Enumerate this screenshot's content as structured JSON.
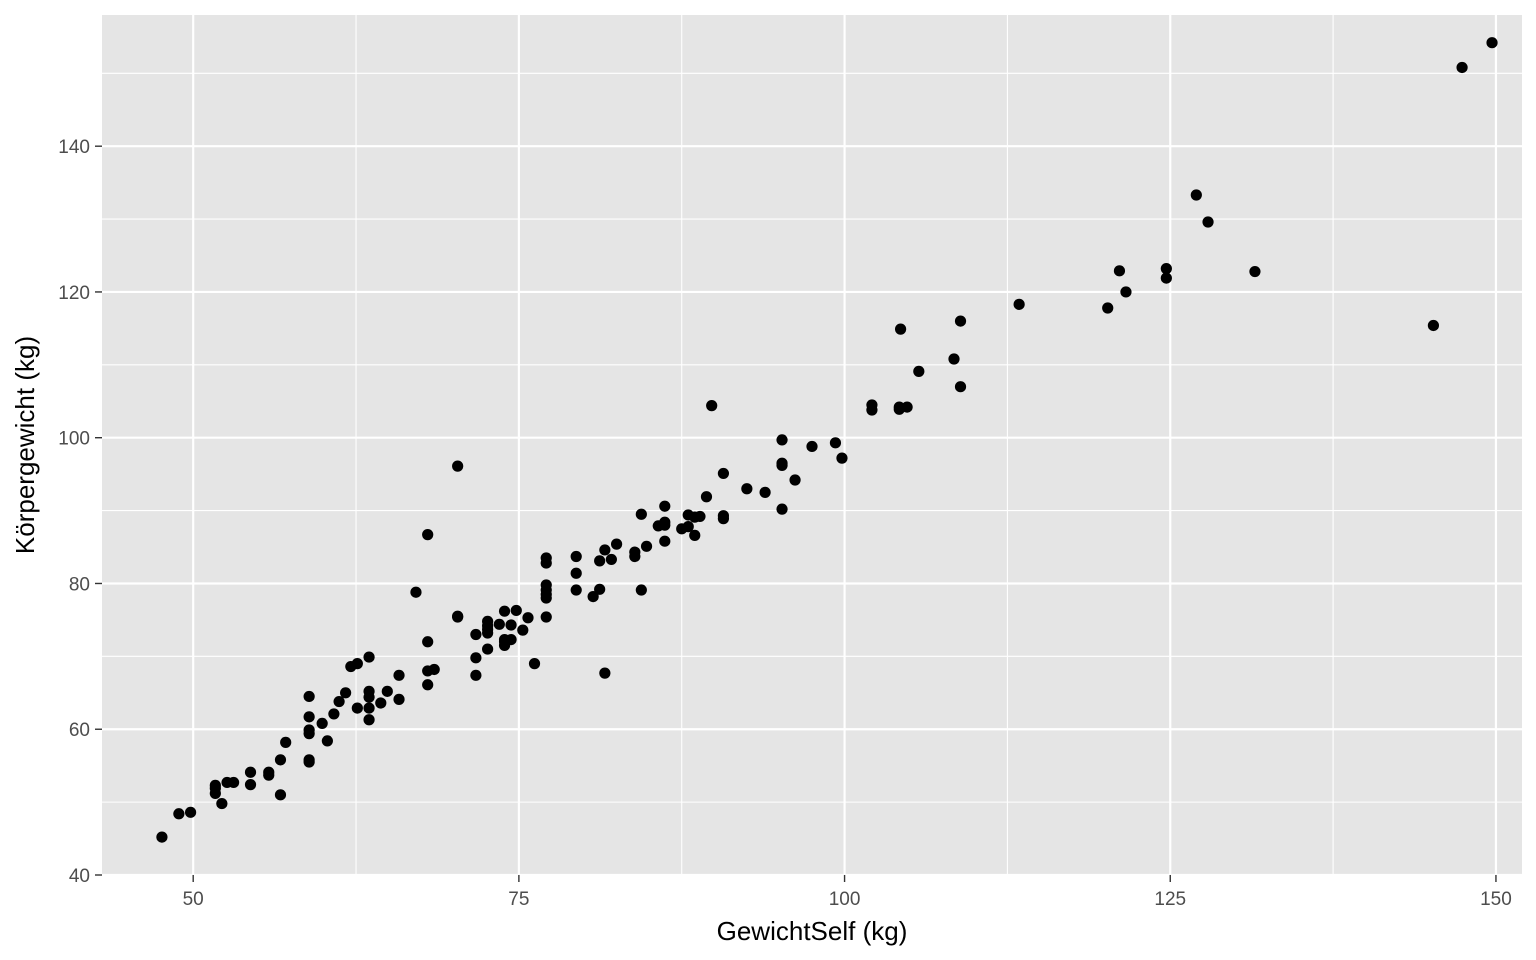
{
  "chart_data": {
    "type": "scatter",
    "title": "",
    "xlabel": "GewichtSelf (kg)",
    "ylabel": "Körpergewicht (kg)",
    "xlim": [
      43,
      152
    ],
    "ylim": [
      40,
      158
    ],
    "x_ticks": [
      50,
      75,
      100,
      125,
      150
    ],
    "y_ticks": [
      40,
      60,
      80,
      100,
      120,
      140
    ],
    "grid": true,
    "legend": "none",
    "colors": {
      "panel": "#e5e5e5",
      "grid": "#ffffff",
      "points": "#000000",
      "tick_text": "#4d4d4d"
    },
    "points": [
      [
        47.6,
        45.2
      ],
      [
        48.9,
        48.4
      ],
      [
        49.8,
        48.6
      ],
      [
        51.7,
        51.2
      ],
      [
        51.7,
        51.9
      ],
      [
        51.7,
        52.3
      ],
      [
        52.2,
        49.8
      ],
      [
        52.6,
        52.7
      ],
      [
        53.1,
        52.7
      ],
      [
        54.4,
        52.4
      ],
      [
        54.4,
        54.1
      ],
      [
        55.8,
        53.7
      ],
      [
        55.8,
        54.1
      ],
      [
        56.7,
        51.0
      ],
      [
        56.7,
        55.8
      ],
      [
        57.1,
        58.2
      ],
      [
        58.9,
        55.8
      ],
      [
        58.9,
        55.5
      ],
      [
        58.9,
        59.4
      ],
      [
        58.9,
        59.9
      ],
      [
        58.9,
        61.7
      ],
      [
        58.9,
        64.5
      ],
      [
        59.9,
        60.8
      ],
      [
        60.3,
        58.4
      ],
      [
        60.8,
        62.1
      ],
      [
        61.2,
        63.8
      ],
      [
        61.7,
        65.0
      ],
      [
        62.1,
        68.6
      ],
      [
        62.6,
        69.0
      ],
      [
        62.6,
        62.9
      ],
      [
        63.5,
        61.3
      ],
      [
        63.5,
        62.9
      ],
      [
        63.5,
        64.4
      ],
      [
        63.5,
        65.2
      ],
      [
        63.5,
        69.9
      ],
      [
        64.4,
        63.6
      ],
      [
        64.9,
        65.2
      ],
      [
        65.8,
        64.1
      ],
      [
        65.8,
        67.4
      ],
      [
        67.1,
        78.8
      ],
      [
        68.0,
        66.1
      ],
      [
        68.0,
        68.0
      ],
      [
        68.0,
        72.0
      ],
      [
        68.0,
        86.7
      ],
      [
        68.5,
        68.2
      ],
      [
        70.3,
        75.5
      ],
      [
        70.3,
        75.4
      ],
      [
        70.3,
        96.1
      ],
      [
        71.7,
        73.0
      ],
      [
        71.7,
        69.8
      ],
      [
        71.7,
        67.4
      ],
      [
        72.6,
        71.0
      ],
      [
        72.6,
        73.2
      ],
      [
        72.6,
        73.7
      ],
      [
        72.6,
        74.2
      ],
      [
        72.6,
        74.8
      ],
      [
        73.5,
        74.4
      ],
      [
        73.9,
        72.0
      ],
      [
        73.9,
        72.3
      ],
      [
        73.9,
        71.5
      ],
      [
        73.9,
        76.2
      ],
      [
        74.4,
        74.3
      ],
      [
        74.4,
        72.3
      ],
      [
        74.8,
        76.3
      ],
      [
        75.3,
        73.6
      ],
      [
        75.7,
        75.3
      ],
      [
        76.2,
        69.0
      ],
      [
        77.1,
        75.4
      ],
      [
        77.1,
        78.0
      ],
      [
        77.1,
        78.5
      ],
      [
        77.1,
        79.1
      ],
      [
        77.1,
        79.8
      ],
      [
        77.1,
        82.8
      ],
      [
        77.1,
        83.5
      ],
      [
        79.4,
        79.1
      ],
      [
        79.4,
        81.4
      ],
      [
        79.4,
        83.7
      ],
      [
        80.7,
        78.2
      ],
      [
        81.2,
        79.2
      ],
      [
        81.2,
        83.1
      ],
      [
        81.6,
        84.6
      ],
      [
        81.6,
        67.7
      ],
      [
        82.1,
        83.3
      ],
      [
        82.5,
        85.4
      ],
      [
        83.9,
        83.7
      ],
      [
        83.9,
        84.3
      ],
      [
        84.4,
        79.1
      ],
      [
        84.4,
        89.5
      ],
      [
        84.8,
        85.1
      ],
      [
        85.7,
        87.9
      ],
      [
        86.2,
        88.0
      ],
      [
        86.2,
        88.4
      ],
      [
        86.2,
        85.8
      ],
      [
        86.2,
        90.6
      ],
      [
        87.5,
        87.5
      ],
      [
        88.0,
        87.8
      ],
      [
        88.0,
        89.4
      ],
      [
        88.5,
        89.1
      ],
      [
        88.5,
        86.6
      ],
      [
        88.9,
        89.2
      ],
      [
        89.4,
        91.9
      ],
      [
        89.8,
        104.4
      ],
      [
        90.7,
        88.9
      ],
      [
        90.7,
        89.3
      ],
      [
        90.7,
        95.1
      ],
      [
        92.5,
        93.0
      ],
      [
        93.9,
        92.5
      ],
      [
        95.2,
        99.7
      ],
      [
        95.2,
        96.5
      ],
      [
        95.2,
        96.2
      ],
      [
        95.2,
        90.2
      ],
      [
        96.2,
        94.2
      ],
      [
        97.5,
        98.8
      ],
      [
        99.3,
        99.3
      ],
      [
        99.8,
        97.2
      ],
      [
        102.1,
        103.8
      ],
      [
        102.1,
        104.5
      ],
      [
        104.2,
        103.9
      ],
      [
        104.2,
        104.2
      ],
      [
        104.8,
        104.2
      ],
      [
        104.3,
        114.9
      ],
      [
        105.7,
        109.1
      ],
      [
        108.9,
        116.0
      ],
      [
        108.4,
        110.8
      ],
      [
        108.9,
        107.0
      ],
      [
        113.4,
        118.3
      ],
      [
        120.2,
        117.8
      ],
      [
        121.1,
        122.9
      ],
      [
        121.6,
        120.0
      ],
      [
        124.7,
        123.2
      ],
      [
        124.7,
        121.9
      ],
      [
        127.0,
        133.3
      ],
      [
        127.9,
        129.6
      ],
      [
        131.5,
        122.8
      ],
      [
        145.2,
        115.4
      ],
      [
        147.4,
        150.8
      ],
      [
        149.7,
        154.2
      ]
    ]
  }
}
